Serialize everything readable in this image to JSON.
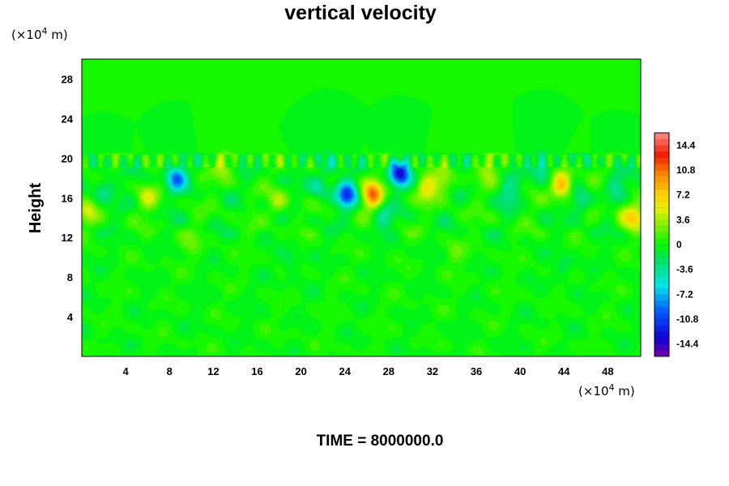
{
  "chart_data": {
    "type": "heatmap",
    "title": "vertical velocity",
    "xlabel": "",
    "ylabel": "Height",
    "x_unit": "(×10",
    "x_unit_exp": "4",
    "x_unit_tail": " m)",
    "y_unit": "(×10",
    "y_unit_exp": "4",
    "y_unit_tail": " m)",
    "xlim": [
      0,
      51
    ],
    "ylim": [
      0,
      30
    ],
    "x_ticks": [
      4,
      8,
      12,
      16,
      20,
      24,
      28,
      32,
      36,
      40,
      44,
      48
    ],
    "y_ticks": [
      4,
      8,
      12,
      16,
      20,
      24,
      28
    ],
    "colorbar": {
      "range": [
        -16.2,
        16.2
      ],
      "levels": 36,
      "tick_values": [
        14.4,
        10.8,
        7.2,
        3.6,
        0,
        -3.6,
        -7.2,
        -10.8,
        -14.4
      ],
      "tick_labels": [
        "14.4",
        "10.8",
        "7.2",
        "3.6",
        "0",
        "-3.6",
        "-7.2",
        "-10.8",
        "-14.4"
      ]
    },
    "background_value": 0,
    "features": [
      {
        "x": 26.5,
        "y": 16.3,
        "value": 10.8
      },
      {
        "x": 24.2,
        "y": 16.3,
        "value": -10.8
      },
      {
        "x": 29.0,
        "y": 18.5,
        "value": -12.6
      },
      {
        "x": 8.6,
        "y": 18.0,
        "value": -9.0
      },
      {
        "x": 43.8,
        "y": 17.3,
        "value": 9.0
      },
      {
        "x": 31.5,
        "y": 17.0,
        "value": 5.4
      },
      {
        "x": 33.0,
        "y": 17.5,
        "value": 3.6
      },
      {
        "x": 50.5,
        "y": 14.0,
        "value": 5.4
      },
      {
        "x": 49.5,
        "y": 14.5,
        "value": 3.6
      },
      {
        "x": 48.8,
        "y": 17.2,
        "value": -3.6
      },
      {
        "x": 45.5,
        "y": 15.5,
        "value": -3.6
      },
      {
        "x": 21.5,
        "y": 17.0,
        "value": -3.6
      },
      {
        "x": 18.0,
        "y": 15.5,
        "value": 3.6
      },
      {
        "x": 6.0,
        "y": 16.0,
        "value": 3.6
      },
      {
        "x": 2.0,
        "y": 17.0,
        "value": -3.6
      },
      {
        "x": 0.5,
        "y": 14.5,
        "value": 3.6
      },
      {
        "x": 39.0,
        "y": 16.5,
        "value": -3.6
      },
      {
        "x": 37.0,
        "y": 19.0,
        "value": 3.6
      },
      {
        "x": 13.0,
        "y": 19.3,
        "value": 3.6
      },
      {
        "x": 22.5,
        "y": 19.3,
        "value": -3.6
      },
      {
        "x": 27.5,
        "y": 14.0,
        "value": -3.6
      },
      {
        "x": 42.0,
        "y": 19.2,
        "value": -5.4
      },
      {
        "x": 10.0,
        "y": 11.5,
        "value": 1.8
      },
      {
        "x": 34.0,
        "y": 10.5,
        "value": 1.8
      },
      {
        "x": 19.0,
        "y": 9.5,
        "value": -1.8
      },
      {
        "x": 44.0,
        "y": 9.0,
        "value": -1.8
      }
    ],
    "time_label": "TIME = 8000000.0"
  }
}
